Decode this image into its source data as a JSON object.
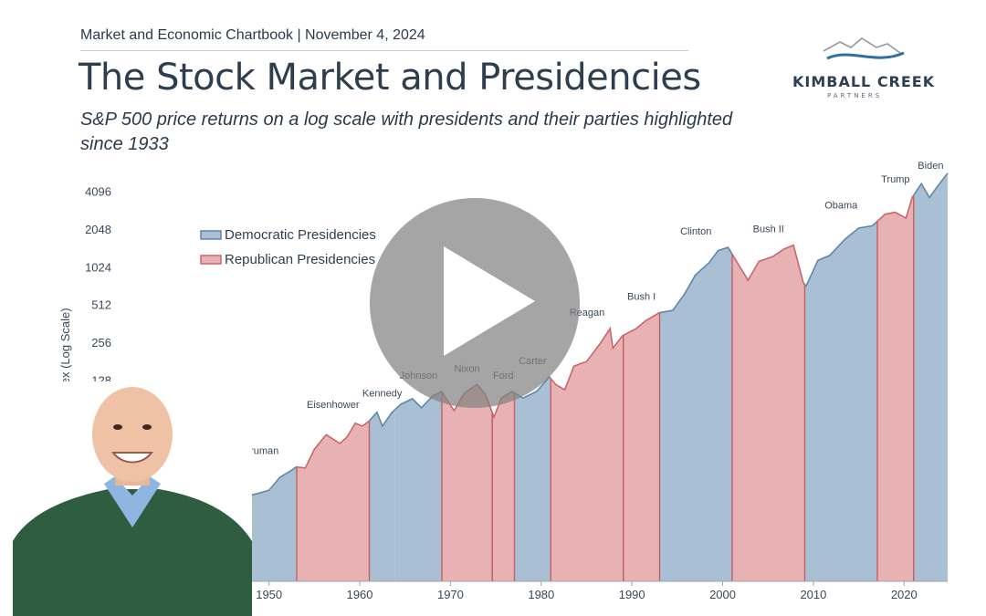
{
  "header": {
    "kicker": "Market and Economic Chartbook | November 4, 2024",
    "title": "The Stock Market and Presidencies",
    "subtitle": "S&P 500 price returns on a log scale with presidents and their parties highlighted since 1933"
  },
  "logo": {
    "line1": "KIMBALL CREEK",
    "line2": "PARTNERS"
  },
  "colors": {
    "democratic_fill": "#a9bfd3",
    "democratic_line": "#5f87ad",
    "republican_fill": "#e8b2b4",
    "republican_line": "#c9666b",
    "divider": "#c26065",
    "title_text": "#2f3e4e"
  },
  "presenter": {
    "icon": "presenter-video-thumbnail"
  },
  "play_button": {
    "icon": "play-icon"
  },
  "chart_data": {
    "type": "area",
    "ylabel": "Price Index (Log Scale)",
    "y_scale": "log2",
    "y_ticks": [
      "128",
      "256",
      "512",
      "1024",
      "2048",
      "4096"
    ],
    "x_ticks": [
      "1950",
      "1960",
      "1970",
      "1980",
      "1990",
      "2000",
      "2010",
      "2020"
    ],
    "xlim": [
      1945,
      2024.8
    ],
    "ylim": [
      12,
      4800
    ],
    "grid": false,
    "legend": {
      "position": "top-left",
      "items": [
        "Democratic Presidencies",
        "Republican Presidencies"
      ]
    },
    "presidencies": [
      {
        "name": "Truman",
        "party": "Democratic",
        "start": 1945.3,
        "end": 1953.05
      },
      {
        "name": "Eisenhower",
        "party": "Republican",
        "start": 1953.05,
        "end": 1961.05
      },
      {
        "name": "Kennedy",
        "party": "Democratic",
        "start": 1961.05,
        "end": 1963.9
      },
      {
        "name": "Johnson",
        "party": "Democratic",
        "start": 1963.9,
        "end": 1969.05
      },
      {
        "name": "Nixon",
        "party": "Republican",
        "start": 1969.05,
        "end": 1974.6
      },
      {
        "name": "Ford",
        "party": "Republican",
        "start": 1974.6,
        "end": 1977.05
      },
      {
        "name": "Carter",
        "party": "Democratic",
        "start": 1977.05,
        "end": 1981.05
      },
      {
        "name": "Reagan",
        "party": "Republican",
        "start": 1981.05,
        "end": 1989.05
      },
      {
        "name": "Bush I",
        "party": "Republican",
        "start": 1989.05,
        "end": 1993.05
      },
      {
        "name": "Clinton",
        "party": "Democratic",
        "start": 1993.05,
        "end": 2001.05
      },
      {
        "name": "Bush II",
        "party": "Republican",
        "start": 2001.05,
        "end": 2009.05
      },
      {
        "name": "Obama",
        "party": "Democratic",
        "start": 2009.05,
        "end": 2017.05
      },
      {
        "name": "Trump",
        "party": "Republican",
        "start": 2017.05,
        "end": 2021.05
      },
      {
        "name": "Biden",
        "party": "Democratic",
        "start": 2021.05,
        "end": 2024.8
      }
    ],
    "series": [
      {
        "values": [
          [
            1945.3,
            14.5
          ],
          [
            1946.4,
            18.5
          ],
          [
            1947.5,
            15.2
          ],
          [
            1948.8,
            16.0
          ],
          [
            1950.0,
            17.0
          ],
          [
            1951.2,
            21.5
          ],
          [
            1952.5,
            24.5
          ],
          [
            1953.0,
            26.0
          ],
          [
            1954.0,
            25.5
          ],
          [
            1955.0,
            36.0
          ],
          [
            1956.3,
            47.0
          ],
          [
            1957.8,
            40.0
          ],
          [
            1958.6,
            45.0
          ],
          [
            1959.5,
            58.0
          ],
          [
            1960.3,
            55.0
          ],
          [
            1961.0,
            60.0
          ],
          [
            1961.9,
            71.0
          ],
          [
            1962.5,
            55.0
          ],
          [
            1963.5,
            70.0
          ],
          [
            1964.5,
            82.0
          ],
          [
            1965.8,
            91.0
          ],
          [
            1966.8,
            77.0
          ],
          [
            1968.0,
            95.0
          ],
          [
            1969.0,
            104.0
          ],
          [
            1970.4,
            73.0
          ],
          [
            1971.5,
            100.0
          ],
          [
            1972.9,
            118.0
          ],
          [
            1973.8,
            100.0
          ],
          [
            1974.8,
            65.0
          ],
          [
            1975.6,
            92.0
          ],
          [
            1976.8,
            104.0
          ],
          [
            1978.0,
            92.0
          ],
          [
            1979.5,
            104.0
          ],
          [
            1980.9,
            136.0
          ],
          [
            1981.6,
            118.0
          ],
          [
            1982.6,
            107.0
          ],
          [
            1983.6,
            165.0
          ],
          [
            1985.0,
            180.0
          ],
          [
            1986.5,
            250.0
          ],
          [
            1987.6,
            330.0
          ],
          [
            1987.9,
            230.0
          ],
          [
            1989.0,
            290.0
          ],
          [
            1990.5,
            330.0
          ],
          [
            1991.5,
            380.0
          ],
          [
            1993.0,
            440.0
          ],
          [
            1994.5,
            460.0
          ],
          [
            1995.8,
            620.0
          ],
          [
            1997.0,
            880.0
          ],
          [
            1998.5,
            1100.0
          ],
          [
            1999.5,
            1380.0
          ],
          [
            2000.6,
            1460.0
          ],
          [
            2001.7,
            1080.0
          ],
          [
            2002.8,
            800.0
          ],
          [
            2004.0,
            1130.0
          ],
          [
            2005.5,
            1230.0
          ],
          [
            2006.8,
            1420.0
          ],
          [
            2007.8,
            1520.0
          ],
          [
            2008.9,
            760.0
          ],
          [
            2009.2,
            720.0
          ],
          [
            2010.5,
            1150.0
          ],
          [
            2011.8,
            1260.0
          ],
          [
            2013.5,
            1700.0
          ],
          [
            2015.0,
            2080.0
          ],
          [
            2016.5,
            2170.0
          ],
          [
            2017.9,
            2680.0
          ],
          [
            2019.0,
            2780.0
          ],
          [
            2020.2,
            2500.0
          ],
          [
            2020.9,
            3650.0
          ],
          [
            2021.9,
            4700.0
          ],
          [
            2022.8,
            3650.0
          ],
          [
            2023.6,
            4400.0
          ],
          [
            2024.8,
            5700.0
          ]
        ]
      }
    ]
  }
}
